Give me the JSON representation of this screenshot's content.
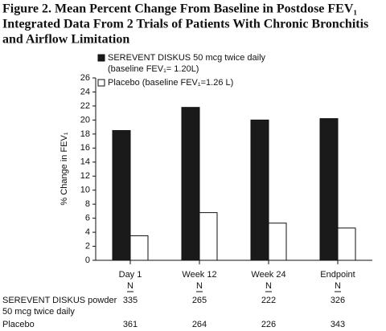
{
  "chart_data": {
    "type": "bar",
    "title": [
      "Figure 2. Mean Percent Change From Baseline in Postdose FEV₁",
      "Integrated Data From 2 Trials of Patients With Chronic Bronchitis",
      "and Airflow Limitation"
    ],
    "y_label": "% Change in FEV₁",
    "categories": [
      "Day 1",
      "Week 12",
      "Week 24",
      "Endpoint"
    ],
    "series": [
      {
        "name": [
          "SEREVENT DISKUS 50 mcg twice daily",
          "(baseline FEV₁= 1.20L)"
        ],
        "color": "#1a1a1a",
        "values": [
          18.5,
          21.8,
          20.0,
          20.2
        ]
      },
      {
        "name": [
          "Placebo (baseline FEV₁=1.26 L)"
        ],
        "color": "#ffffff",
        "values": [
          3.5,
          6.8,
          5.3,
          4.6
        ]
      }
    ],
    "ylim": [
      0,
      26
    ],
    "yticks": [
      0,
      2,
      4,
      6,
      8,
      10,
      12,
      14,
      16,
      18,
      20,
      22,
      24,
      26
    ],
    "n_table": {
      "header": "N",
      "rows": [
        {
          "label": [
            "SEREVENT DISKUS powder",
            "50 mcg twice daily"
          ],
          "values": [
            335,
            265,
            222,
            326
          ]
        },
        {
          "label": [
            "Placebo"
          ],
          "values": [
            361,
            264,
            226,
            343
          ]
        }
      ]
    }
  }
}
